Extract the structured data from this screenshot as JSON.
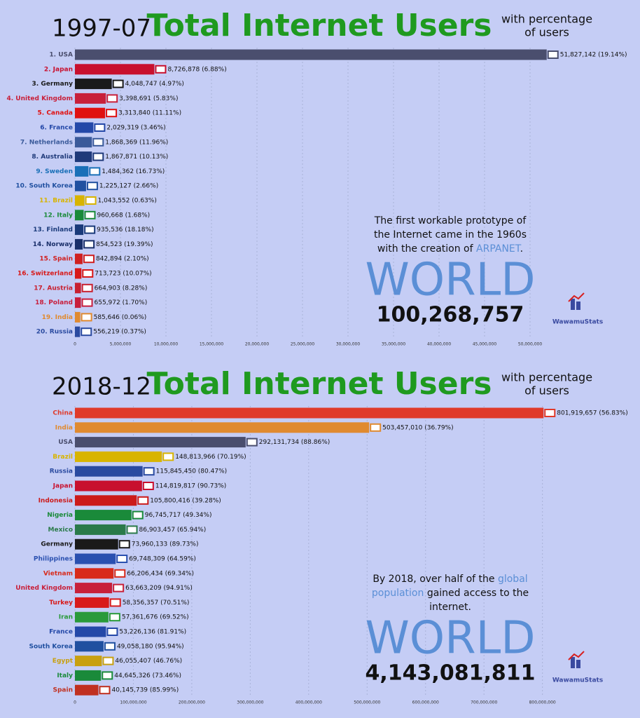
{
  "chart_data": [
    {
      "type": "bar",
      "period": "1997-07",
      "title": "Total Internet Users",
      "subtitle": [
        "with percentage",
        "of users"
      ],
      "categories": [
        "1. USA",
        "2. Japan",
        "3. Germany",
        "4. United Kingdom",
        "5. Canada",
        "6. France",
        "7. Netherlands",
        "8. Australia",
        "9. Sweden",
        "10. South Korea",
        "11. Brazil",
        "12. Italy",
        "13. Finland",
        "14. Norway",
        "15. Spain",
        "16. Switzerland",
        "17. Austria",
        "18. Poland",
        "19. India",
        "20. Russia"
      ],
      "values": [
        51827142,
        8726878,
        4048747,
        3398691,
        3313840,
        2029319,
        1868369,
        1867871,
        1484362,
        1225127,
        1043552,
        960668,
        935536,
        854523,
        842894,
        713723,
        664903,
        655972,
        585646,
        556219
      ],
      "value_labels": [
        "51,827,142 (19.14%)",
        "8,726,878 (6.88%)",
        "4,048,747 (4.97%)",
        "3,398,691 (5.83%)",
        "3,313,840 (11.11%)",
        "2,029,319 (3.46%)",
        "1,868,369 (11.96%)",
        "1,867,871 (10.13%)",
        "1,484,362 (16.73%)",
        "1,225,127 (2.66%)",
        "1,043,552 (0.63%)",
        "960,668 (1.68%)",
        "935,536 (18.18%)",
        "854,523 (19.39%)",
        "842,894 (2.10%)",
        "713,723 (10.07%)",
        "664,903 (8.28%)",
        "655,972 (1.70%)",
        "585,646 (0.06%)",
        "556,219 (0.37%)"
      ],
      "colors": [
        "#4a4e6e",
        "#c8102e",
        "#1a1a1a",
        "#c8203a",
        "#e01010",
        "#2448a8",
        "#3a5a9a",
        "#1f3a7a",
        "#1a70b8",
        "#2050a0",
        "#d8b400",
        "#1a8a3a",
        "#1a3a7a",
        "#1a2f6a",
        "#d02020",
        "#d81818",
        "#c82030",
        "#c81e3c",
        "#e08a30",
        "#2a4aa0"
      ],
      "xlim": [
        0,
        52000000
      ],
      "xticks": [
        0,
        {
          "value": 5000000,
          "label": "5,000,000"
        },
        {
          "value": 10000000,
          "label": "10,000,000"
        },
        {
          "value": 15000000,
          "label": "15,000,000"
        },
        {
          "value": 20000000,
          "label": "20,000,000"
        },
        {
          "value": 25000000,
          "label": "25,000,000"
        },
        {
          "value": 30000000,
          "label": "30,000,000"
        },
        {
          "value": 35000000,
          "label": "35,000,000"
        },
        {
          "value": 40000000,
          "label": "40,000,000"
        },
        {
          "value": 45000000,
          "label": "45,000,000"
        },
        {
          "value": 50000000,
          "label": "50,000,000"
        }
      ],
      "grid": true,
      "annotation": [
        [
          {
            "text": "The first workable prototype of",
            "color": "#111111"
          }
        ],
        [
          {
            "text": "the Internet came in the 1960s",
            "color": "#111111"
          }
        ],
        [
          {
            "text": "with the creation of ",
            "color": "#111111"
          },
          {
            "text": "ARPANET",
            "color": "#5b8fd6"
          },
          {
            "text": ".",
            "color": "#111111"
          }
        ]
      ],
      "region": "WORLD",
      "region_total": "100,268,757",
      "logo": "WawamuStats"
    },
    {
      "type": "bar",
      "period": "2018-12",
      "title": "Total Internet Users",
      "subtitle": [
        "with percentage",
        "of users"
      ],
      "categories": [
        "China",
        "India",
        "USA",
        "Brazil",
        "Russia",
        "Japan",
        "Indonesia",
        "Nigeria",
        "Mexico",
        "Germany",
        "Philippines",
        "Vietnam",
        "United Kingdom",
        "Turkey",
        "Iran",
        "France",
        "South Korea",
        "Egypt",
        "Italy",
        "Spain"
      ],
      "values": [
        801919657,
        503457010,
        292131734,
        148813966,
        115845450,
        114819817,
        105800416,
        96745717,
        86903457,
        73960133,
        69748309,
        66206434,
        63663209,
        58356357,
        57361676,
        53226136,
        49058180,
        46055407,
        44645326,
        40145739
      ],
      "value_labels": [
        "801,919,657 (56.83%)",
        "503,457,010 (36.79%)",
        "292,131,734 (88.86%)",
        "148,813,966 (70.19%)",
        "115,845,450 (80.47%)",
        "114,819,817 (90.73%)",
        "105,800,416 (39.28%)",
        "96,745,717 (49.34%)",
        "86,903,457 (65.94%)",
        "73,960,133 (89.73%)",
        "69,748,309 (64.59%)",
        "66,206,434 (69.34%)",
        "63,663,209 (94.91%)",
        "58,356,357 (70.51%)",
        "57,361,676 (69.52%)",
        "53,226,136 (81.91%)",
        "49,058,180 (95.94%)",
        "46,055,407 (46.76%)",
        "44,645,326 (73.46%)",
        "40,145,739 (85.99%)"
      ],
      "colors": [
        "#e03a2a",
        "#e08a30",
        "#4a4e6e",
        "#d8b400",
        "#2a4aa0",
        "#c8102e",
        "#cc1a1a",
        "#1a8a3a",
        "#2a7a4a",
        "#1a1a1a",
        "#2a50b0",
        "#d82a1a",
        "#c8203a",
        "#d81a1a",
        "#2a9a3a",
        "#2448a8",
        "#2050a0",
        "#c8a010",
        "#1a8a3a",
        "#c03020"
      ],
      "xlim": [
        0,
        810000000
      ],
      "xticks": [
        0,
        {
          "value": 100000000,
          "label": "100,000,000"
        },
        {
          "value": 200000000,
          "label": "200,000,000"
        },
        {
          "value": 300000000,
          "label": "300,000,000"
        },
        {
          "value": 400000000,
          "label": "400,000,000"
        },
        {
          "value": 500000000,
          "label": "500,000,000"
        },
        {
          "value": 600000000,
          "label": "600,000,000"
        },
        {
          "value": 700000000,
          "label": "700,000,000"
        },
        {
          "value": 800000000,
          "label": "800,000,000"
        }
      ],
      "grid": true,
      "annotation": [
        [
          {
            "text": "By 2018, over half of the ",
            "color": "#111111"
          },
          {
            "text": "global",
            "color": "#5b8fd6"
          }
        ],
        [
          {
            "text": "population",
            "color": "#5b8fd6"
          },
          {
            "text": " gained access to the",
            "color": "#111111"
          }
        ],
        [
          {
            "text": "internet.",
            "color": "#111111"
          }
        ]
      ],
      "region": "WORLD",
      "region_total": "4,143,081,811",
      "logo": "WawamuStats"
    }
  ]
}
